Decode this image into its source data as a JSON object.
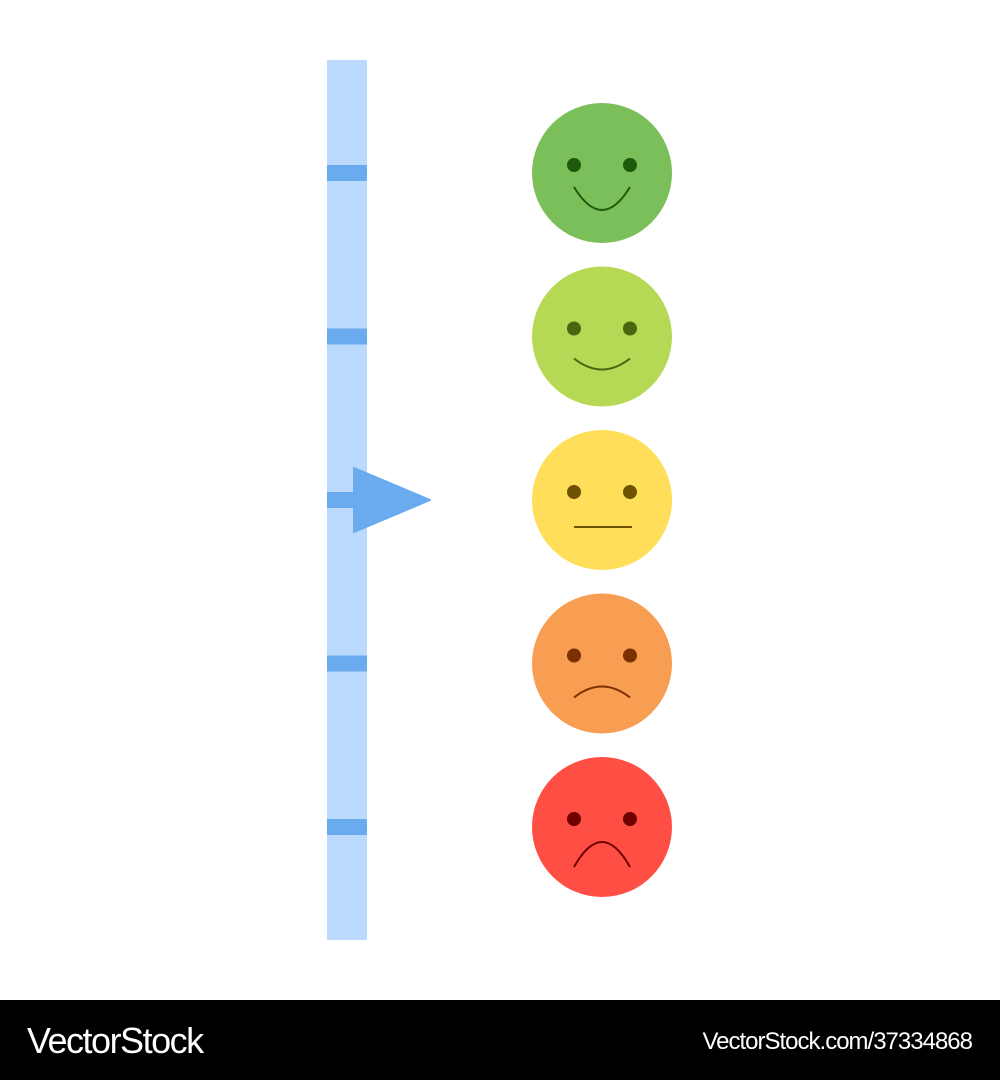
{
  "scale": {
    "bar_color": "#bbdafd",
    "tick_color": "#6aaaee",
    "arrow_color": "#6aaaee",
    "levels": 5,
    "pointer_level": 3
  },
  "faces": [
    {
      "mood": "very-happy",
      "color": "#7bbf5b",
      "feature_color": "#1e5a0a"
    },
    {
      "mood": "happy",
      "color": "#b6d955",
      "feature_color": "#4d6410"
    },
    {
      "mood": "neutral",
      "color": "#ffde5a",
      "feature_color": "#6e5400"
    },
    {
      "mood": "sad",
      "color": "#f89e52",
      "feature_color": "#7a3000"
    },
    {
      "mood": "very-sad",
      "color": "#ff4e44",
      "feature_color": "#6e0000"
    }
  ],
  "footer": {
    "brand": "VectorStock",
    "url": "VectorStock.com/37334868"
  }
}
